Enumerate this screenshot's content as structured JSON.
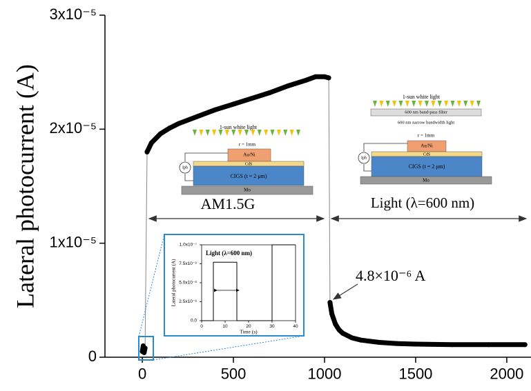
{
  "chart_data": [
    {
      "type": "line",
      "y_label": "Lateral photocurrent (A)",
      "xlim": [
        -205,
        2133
      ],
      "ylim": [
        0,
        3e-05
      ],
      "xticks": [
        0,
        500,
        1000,
        1500,
        2000
      ],
      "yticks": [
        0,
        {
          "value": 1e-05,
          "label": "1x10⁻⁵"
        },
        {
          "value": 2e-05,
          "label": "2x10⁻⁵"
        },
        {
          "value": 3e-05,
          "label": "3x10⁻⁵"
        }
      ],
      "color": "#000000",
      "x": [
        0,
        5,
        10,
        15,
        26,
        50,
        100,
        150,
        200,
        300,
        400,
        500,
        600,
        700,
        800,
        900,
        950,
        1000,
        1023,
        1030,
        1040,
        1060,
        1080,
        1100,
        1150,
        1200,
        1300,
        1400,
        1500,
        1700,
        1900,
        2100
      ],
      "values": [
        5e-07,
        1e-06,
        4e-07,
        8e-07,
        1.8e-05,
        1.88e-05,
        1.96e-05,
        2.01e-05,
        2.05e-05,
        2.11e-05,
        2.17e-05,
        2.22e-05,
        2.27e-05,
        2.32e-05,
        2.38e-05,
        2.43e-05,
        2.46e-05,
        2.46e-05,
        2.45e-05,
        4.8e-06,
        3.8e-06,
        2.9e-06,
        2.4e-06,
        2.1e-06,
        1.7e-06,
        1.5e-06,
        1.3e-06,
        1.2e-06,
        1.15e-06,
        1.1e-06,
        1.1e-06,
        1.1e-06
      ],
      "annotation": "4.8×10⁻⁶ A",
      "region_labels": [
        "AM1.5G",
        "Light (λ=600 nm)"
      ],
      "diagram_left": {
        "light": "1-sun white light",
        "radius": "r = 1mm",
        "electrode": "Au/Ni",
        "buffer": "CdS",
        "absorber": "CIGS (t = 2 μm)",
        "substrate": "Mo",
        "current": "Iph"
      },
      "diagram_right": {
        "light": "1-sun white light",
        "filter": "600 nm band-pass filter",
        "filtered": "600 nm narrow bandwidth light",
        "radius": "r = 1mm",
        "electrode": "Au/Ni",
        "buffer": "CdS",
        "absorber": "CIGS (t = 2 μm)",
        "substrate": "Mo",
        "current": "Iph"
      }
    },
    {
      "type": "line",
      "title": "Light (λ=600 nm)",
      "x_label": "Time (s)",
      "y_label": "Lateral photocurrent (A)",
      "xlim": [
        0,
        40
      ],
      "ylim": [
        0,
        1e-07
      ],
      "xticks": [
        0,
        10,
        20,
        30,
        40
      ],
      "yticks": [
        {
          "value": 0,
          "label": "0.0"
        },
        {
          "value": 2.5e-08,
          "label": "2.5x10⁻⁸"
        },
        {
          "value": 5e-08,
          "label": "5.0x10⁻⁸"
        },
        {
          "value": 7.5e-08,
          "label": "7.5x10⁻⁸"
        },
        {
          "value": 1e-07,
          "label": "1.0x10⁻⁷"
        }
      ],
      "color": "#000000",
      "x": [
        0,
        5,
        5,
        15,
        15,
        30,
        30,
        40
      ],
      "values": [
        0,
        0,
        7.7e-08,
        7.7e-08,
        0,
        0,
        1e-07,
        1e-07
      ]
    }
  ]
}
